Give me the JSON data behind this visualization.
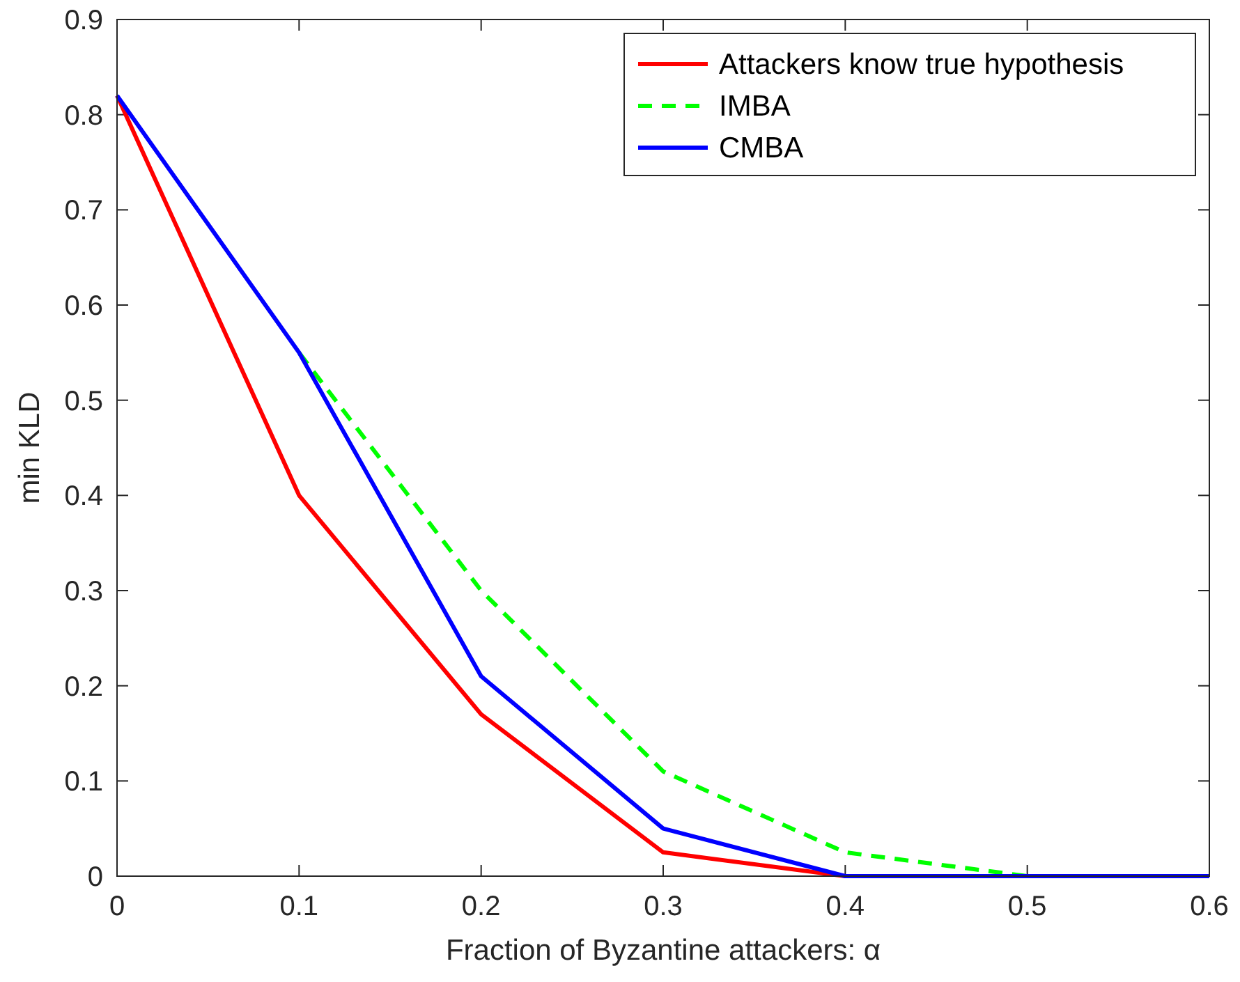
{
  "chart_data": {
    "type": "line",
    "xlabel": "Fraction of Byzantine attackers: α",
    "ylabel": "min KLD",
    "x": [
      0,
      0.1,
      0.2,
      0.3,
      0.4,
      0.5,
      0.6
    ],
    "series": [
      {
        "name": "Attackers know true hypothesis",
        "color": "#ff0000",
        "line_style": "solid",
        "values": [
          0.82,
          0.4,
          0.17,
          0.025,
          0,
          0,
          0
        ]
      },
      {
        "name": "IMBA",
        "color": "#00ff00",
        "line_style": "dashed",
        "values": [
          null,
          0.55,
          0.3,
          0.11,
          0.025,
          0,
          0
        ]
      },
      {
        "name": "CMBA",
        "color": "#0000ff",
        "line_style": "solid",
        "values": [
          0.82,
          0.55,
          0.21,
          0.05,
          0,
          0,
          0
        ]
      }
    ],
    "xlim": [
      0,
      0.6
    ],
    "xticks": [
      0,
      0.1,
      0.2,
      0.3,
      0.4,
      0.5,
      0.6
    ],
    "ylim": [
      0,
      0.9
    ],
    "yticks": [
      0,
      0.1,
      0.2,
      0.3,
      0.4,
      0.5,
      0.6,
      0.7,
      0.8,
      0.9
    ],
    "grid": false,
    "legend": "top right",
    "marker": "none"
  }
}
